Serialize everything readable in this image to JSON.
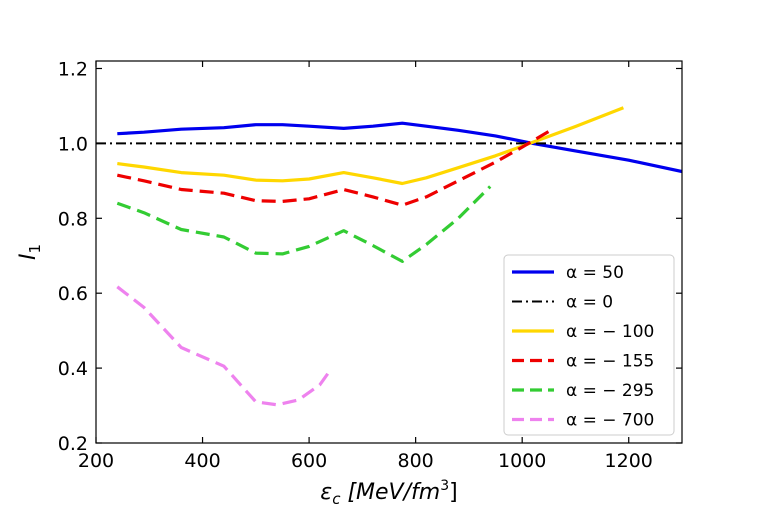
{
  "chart_data": {
    "type": "line",
    "xlabel": "εc [MeV/fm³]",
    "xlabel_parts": {
      "main": "ε",
      "sub": "c",
      "units": "[MeV/fm",
      "sup": "3",
      "close": "]"
    },
    "ylabel": "I1",
    "ylabel_parts": {
      "main": "I",
      "sub": "1"
    },
    "xlim": [
      200,
      1300
    ],
    "ylim": [
      0.2,
      1.22
    ],
    "xticks": [
      200,
      400,
      600,
      800,
      1000,
      1200
    ],
    "xtick_labels": [
      "200",
      "400",
      "600",
      "800",
      "1000",
      "1200"
    ],
    "yticks": [
      0.2,
      0.4,
      0.6,
      0.8,
      1.0,
      1.2
    ],
    "ytick_labels": [
      "0.2",
      "0.4",
      "0.6",
      "0.8",
      "1.0",
      "1.2"
    ],
    "grid": false,
    "legend_position": "lower-right",
    "series": [
      {
        "name": "α = 50",
        "color": "#0000ee",
        "style": "solid",
        "x": [
          240,
          290,
          360,
          440,
          500,
          550,
          600,
          665,
          720,
          775,
          820,
          880,
          950,
          1020,
          1100,
          1200,
          1300
        ],
        "y": [
          1.026,
          1.03,
          1.038,
          1.042,
          1.05,
          1.05,
          1.046,
          1.04,
          1.046,
          1.054,
          1.046,
          1.035,
          1.02,
          1.0,
          0.98,
          0.955,
          0.925
        ]
      },
      {
        "name": "α = 0",
        "color": "#000000",
        "style": "dashdot",
        "x": [
          200,
          1300
        ],
        "y": [
          1.0,
          1.0
        ]
      },
      {
        "name": "α = − 100",
        "color": "#ffd700",
        "style": "solid",
        "x": [
          240,
          290,
          360,
          440,
          500,
          550,
          600,
          665,
          720,
          775,
          820,
          880,
          950,
          1020,
          1100,
          1190
        ],
        "y": [
          0.946,
          0.937,
          0.922,
          0.915,
          0.902,
          0.9,
          0.905,
          0.922,
          0.908,
          0.893,
          0.908,
          0.935,
          0.967,
          1.003,
          1.045,
          1.095
        ]
      },
      {
        "name": "α = − 155",
        "color": "#ee0000",
        "style": "dashed",
        "x": [
          240,
          290,
          360,
          440,
          500,
          550,
          600,
          665,
          720,
          775,
          820,
          880,
          950,
          1000,
          1050
        ],
        "y": [
          0.915,
          0.9,
          0.877,
          0.867,
          0.847,
          0.845,
          0.852,
          0.877,
          0.857,
          0.835,
          0.857,
          0.9,
          0.95,
          0.99,
          1.032
        ]
      },
      {
        "name": "α = − 295",
        "color": "#33cc33",
        "style": "dashed",
        "x": [
          240,
          290,
          360,
          440,
          500,
          550,
          600,
          665,
          720,
          775,
          820,
          880,
          940
        ],
        "y": [
          0.84,
          0.815,
          0.77,
          0.75,
          0.707,
          0.705,
          0.725,
          0.767,
          0.727,
          0.685,
          0.73,
          0.8,
          0.885
        ]
      },
      {
        "name": "α = − 700",
        "color": "#ee82ee",
        "style": "dashed",
        "x": [
          240,
          290,
          360,
          440,
          500,
          540,
          580,
          620,
          640
        ],
        "y": [
          0.617,
          0.562,
          0.455,
          0.405,
          0.31,
          0.302,
          0.315,
          0.355,
          0.395
        ]
      }
    ]
  }
}
